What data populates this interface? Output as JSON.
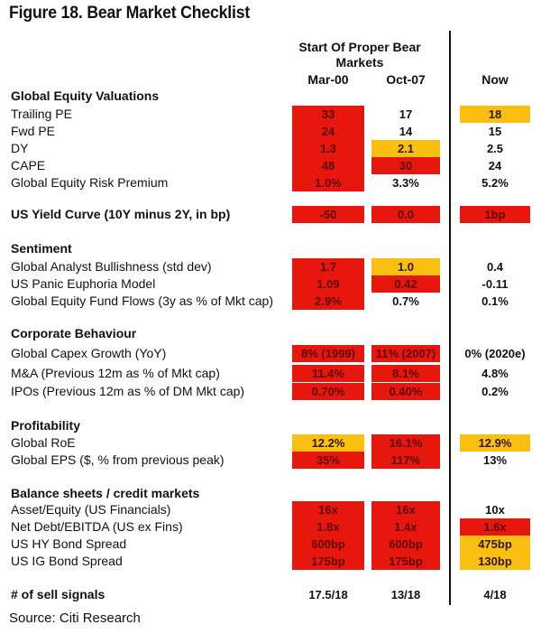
{
  "title": "Figure 18. Bear Market Checklist",
  "header": {
    "group_line1": "Start Of Proper Bear",
    "group_line2": "Markets",
    "col1": "Mar-00",
    "col2": "Oct-07",
    "col3": "Now"
  },
  "colors": {
    "red": "#e8170d",
    "yellow": "#fbbf12"
  },
  "sections": [
    {
      "title": "Global Equity Valuations",
      "rows": [
        {
          "label": "Trailing PE",
          "cells": [
            {
              "v": "33",
              "c": "red"
            },
            {
              "v": "17",
              "c": "none"
            },
            {
              "v": "18",
              "c": "yellow"
            }
          ]
        },
        {
          "label": "Fwd PE",
          "cells": [
            {
              "v": "24",
              "c": "red"
            },
            {
              "v": "14",
              "c": "none"
            },
            {
              "v": "15",
              "c": "none"
            }
          ]
        },
        {
          "label": "DY",
          "cells": [
            {
              "v": "1.3",
              "c": "red"
            },
            {
              "v": "2.1",
              "c": "yellow"
            },
            {
              "v": "2.5",
              "c": "none"
            }
          ]
        },
        {
          "label": "CAPE",
          "cells": [
            {
              "v": "48",
              "c": "red"
            },
            {
              "v": "30",
              "c": "red"
            },
            {
              "v": "24",
              "c": "none"
            }
          ]
        },
        {
          "label": "Global Equity Risk Premium",
          "cells": [
            {
              "v": "1.0%",
              "c": "red"
            },
            {
              "v": "3.3%",
              "c": "none"
            },
            {
              "v": "5.2%",
              "c": "none"
            }
          ]
        }
      ]
    },
    {
      "title": "US Yield Curve (10Y minus 2Y, in bp)",
      "inline": true,
      "rows": [
        {
          "label": "",
          "cells": [
            {
              "v": "-50",
              "c": "red"
            },
            {
              "v": "0.0",
              "c": "red"
            },
            {
              "v": "1bp",
              "c": "red"
            }
          ]
        }
      ]
    },
    {
      "title": "Sentiment",
      "rows": [
        {
          "label": "Global Analyst Bullishness (std dev)",
          "cells": [
            {
              "v": "1.7",
              "c": "red"
            },
            {
              "v": "1.0",
              "c": "yellow"
            },
            {
              "v": "0.4",
              "c": "none"
            }
          ]
        },
        {
          "label": "US Panic Euphoria Model",
          "cells": [
            {
              "v": "1.09",
              "c": "red"
            },
            {
              "v": "0.42",
              "c": "red"
            },
            {
              "v": "-0.11",
              "c": "none"
            }
          ]
        },
        {
          "label": "Global Equity Fund Flows (3y as % of Mkt cap)",
          "cells": [
            {
              "v": "2.9%",
              "c": "red"
            },
            {
              "v": "0.7%",
              "c": "none"
            },
            {
              "v": "0.1%",
              "c": "none"
            }
          ]
        }
      ]
    },
    {
      "title": "Corporate Behaviour",
      "rows": [
        {
          "label": "Global Capex Growth (YoY)",
          "cells": [
            {
              "v": "8% (1999)",
              "c": "red"
            },
            {
              "v": "11% (2007)",
              "c": "red"
            },
            {
              "v": "0% (2020e)",
              "c": "none"
            }
          ]
        },
        {
          "label": "M&A (Previous 12m as % of Mkt cap)",
          "cells": [
            {
              "v": "11.4%",
              "c": "red"
            },
            {
              "v": "8.1%",
              "c": "red"
            },
            {
              "v": "4.8%",
              "c": "none"
            }
          ]
        },
        {
          "label": "IPOs (Previous 12m as % of DM Mkt cap)",
          "cells": [
            {
              "v": "0.70%",
              "c": "red"
            },
            {
              "v": "0.40%",
              "c": "red"
            },
            {
              "v": "0.2%",
              "c": "none"
            }
          ]
        }
      ]
    },
    {
      "title": "Profitability",
      "rows": [
        {
          "label": "Global RoE",
          "cells": [
            {
              "v": "12.2%",
              "c": "yellow"
            },
            {
              "v": "16.1%",
              "c": "red"
            },
            {
              "v": "12.9%",
              "c": "yellow"
            }
          ]
        },
        {
          "label": "Global EPS  ($, % from previous peak)",
          "cells": [
            {
              "v": "35%",
              "c": "red"
            },
            {
              "v": "117%",
              "c": "red"
            },
            {
              "v": "13%",
              "c": "none"
            }
          ]
        }
      ]
    },
    {
      "title": "Balance sheets / credit markets",
      "rows": [
        {
          "label": "Asset/Equity (US Financials)",
          "cells": [
            {
              "v": "16x",
              "c": "red"
            },
            {
              "v": "16x",
              "c": "red"
            },
            {
              "v": "10x",
              "c": "none"
            }
          ]
        },
        {
          "label": "Net Debt/EBITDA (US ex Fins)",
          "cells": [
            {
              "v": "1.8x",
              "c": "red"
            },
            {
              "v": "1.4x",
              "c": "red"
            },
            {
              "v": "1.6x",
              "c": "red"
            }
          ]
        },
        {
          "label": "US HY Bond Spread",
          "cells": [
            {
              "v": "600bp",
              "c": "red"
            },
            {
              "v": "600bp",
              "c": "red"
            },
            {
              "v": "475bp",
              "c": "yellow"
            }
          ]
        },
        {
          "label": "US IG Bond Spread",
          "cells": [
            {
              "v": "175bp",
              "c": "red"
            },
            {
              "v": "175bp",
              "c": "red"
            },
            {
              "v": "130bp",
              "c": "yellow"
            }
          ]
        }
      ]
    },
    {
      "title": "# of sell signals",
      "inline": true,
      "rows": [
        {
          "label": "",
          "cells": [
            {
              "v": "17.5/18",
              "c": "none"
            },
            {
              "v": "13/18",
              "c": "none"
            },
            {
              "v": "4/18",
              "c": "none"
            }
          ]
        }
      ]
    }
  ],
  "source": "Source: Citi Research"
}
